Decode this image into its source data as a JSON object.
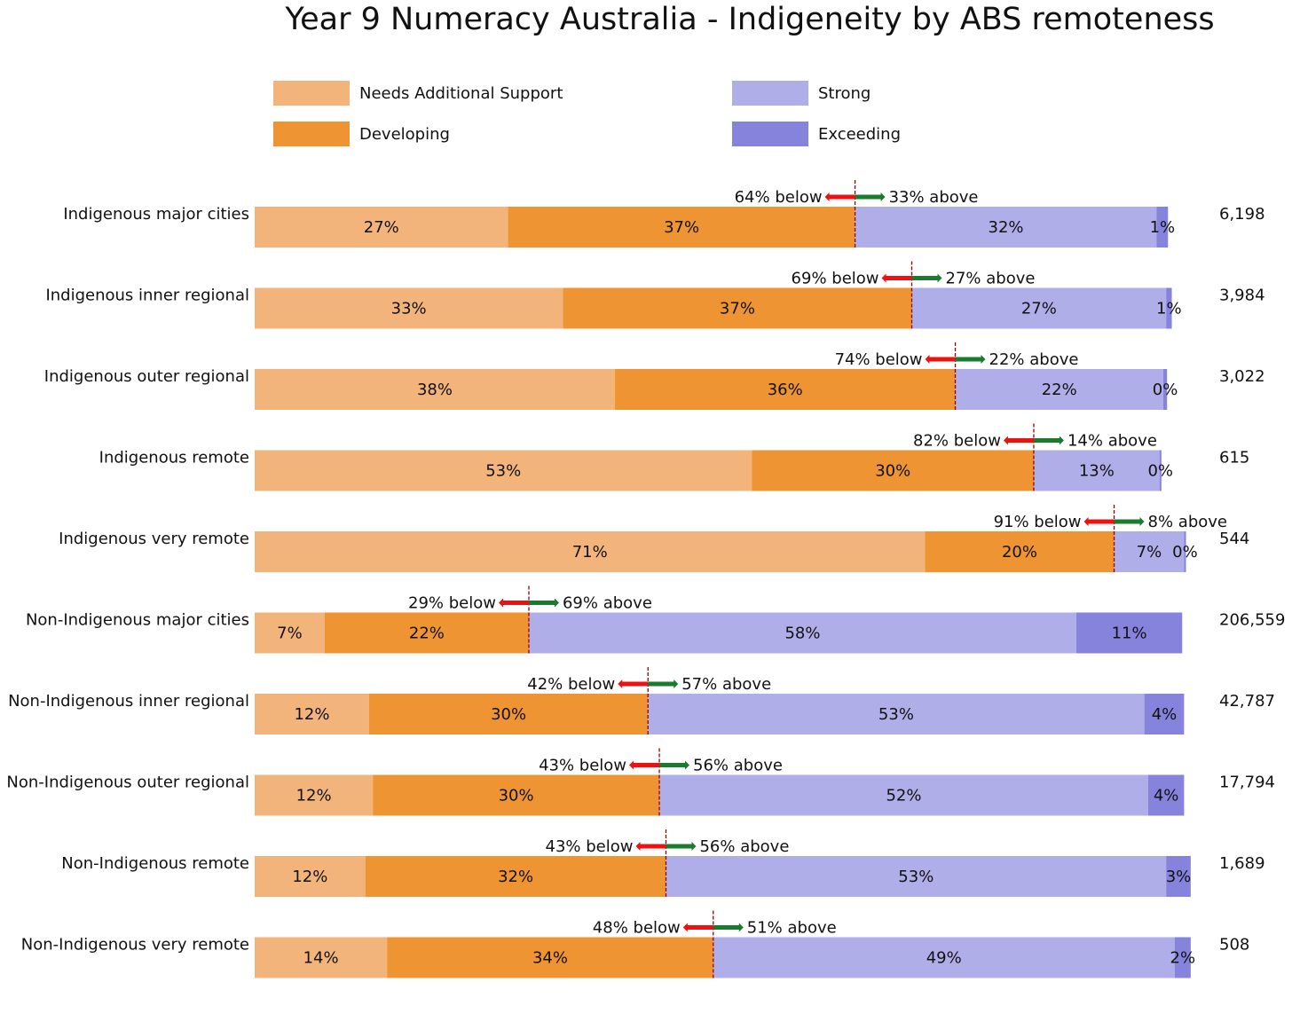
{
  "chart_data": {
    "type": "bar",
    "orientation": "horizontal-stacked",
    "title": "Year 9 Numeracy Australia - Indigeneity by ABS remoteness",
    "legend_position": "top",
    "categories": [
      "Indigenous major cities",
      "Indigenous inner regional",
      "Indigenous outer regional",
      "Indigenous remote",
      "Indigenous very remote",
      "Non-Indigenous major cities",
      "Non-Indigenous inner regional",
      "Non-Indigenous outer regional",
      "Non-Indigenous remote",
      "Non-Indigenous very remote"
    ],
    "series": [
      {
        "name": "Needs Additional Support",
        "color": "#f2b47a",
        "values": [
          26.8,
          32.6,
          38.1,
          52.6,
          70.9,
          7.4,
          12.1,
          12.5,
          11.7,
          14.0
        ],
        "labels": [
          "27%",
          "33%",
          "38%",
          "53%",
          "71%",
          "7%",
          "12%",
          "12%",
          "12%",
          "14%"
        ]
      },
      {
        "name": "Developing",
        "color": "#ee9433",
        "values": [
          36.7,
          36.9,
          36.0,
          29.8,
          20.0,
          21.6,
          29.5,
          30.3,
          31.8,
          34.5
        ],
        "labels": [
          "37%",
          "37%",
          "36%",
          "30%",
          "20%",
          "22%",
          "30%",
          "30%",
          "32%",
          "34%"
        ]
      },
      {
        "name": "Strong",
        "color": "#b0aee8",
        "values": [
          31.9,
          26.9,
          22.0,
          13.3,
          7.4,
          57.9,
          52.5,
          51.7,
          52.9,
          48.8
        ],
        "labels": [
          "32%",
          "27%",
          "22%",
          "13%",
          "7%",
          "58%",
          "53%",
          "52%",
          "53%",
          "49%"
        ]
      },
      {
        "name": "Exceeding",
        "color": "#8683dd",
        "values": [
          1.2,
          0.6,
          0.4,
          0.2,
          0.2,
          11.2,
          4.2,
          3.8,
          2.6,
          1.7
        ],
        "labels": [
          "1%",
          "1%",
          "0%",
          "0%",
          "0%",
          "11%",
          "4%",
          "4%",
          "3%",
          "2%"
        ]
      }
    ],
    "below_labels": [
      "64% below",
      "69% below",
      "74% below",
      "82% below",
      "91% below",
      "29% below",
      "42% below",
      "43% below",
      "43% below",
      "48% below"
    ],
    "above_labels": [
      "33% above",
      "27% above",
      "22% above",
      "14% above",
      "8% above",
      "69% above",
      "57% above",
      "56% above",
      "56% above",
      "51% above"
    ],
    "counts": [
      "6,198",
      "3,984",
      "3,022",
      "615",
      "544",
      "206,559",
      "42,787",
      "17,794",
      "1,689",
      "508"
    ],
    "below_arrow_color": "#ee1111",
    "above_arrow_color": "#1a7a2e",
    "threshold_line_color": "#990000",
    "xlim": [
      0,
      100
    ]
  }
}
